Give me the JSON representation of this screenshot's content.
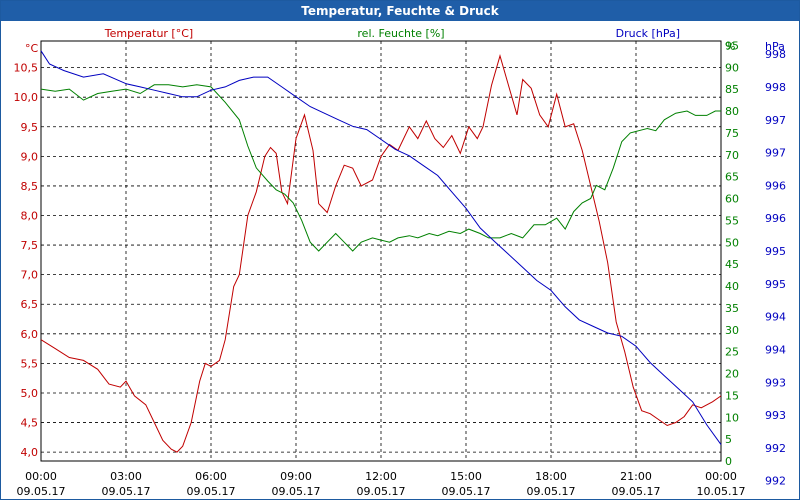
{
  "window": {
    "title": "Temperatur, Feuchte & Druck"
  },
  "chart_data": {
    "type": "line",
    "title": "Temperatur, Feuchte & Druck",
    "x_ticks": [
      {
        "time": "00:00",
        "date": "09.05.17"
      },
      {
        "time": "03:00",
        "date": "09.05.17"
      },
      {
        "time": "06:00",
        "date": "09.05.17"
      },
      {
        "time": "09:00",
        "date": "09.05.17"
      },
      {
        "time": "12:00",
        "date": "09.05.17"
      },
      {
        "time": "15:00",
        "date": "09.05.17"
      },
      {
        "time": "18:00",
        "date": "09.05.17"
      },
      {
        "time": "21:00",
        "date": "09.05.17"
      },
      {
        "time": "00:00",
        "date": "10.05.17"
      }
    ],
    "xlim_hours": [
      0,
      24
    ],
    "grid": true,
    "axes": {
      "temperature": {
        "unit": "°C",
        "legend": "Temperatur [°C]",
        "color": "#c00000",
        "ylim": [
          3.85,
          10.95
        ],
        "ticks": [
          "4,0",
          "4,5",
          "5,0",
          "5,5",
          "6,0",
          "6,5",
          "7,0",
          "7,5",
          "8,0",
          "8,5",
          "9,0",
          "9,5",
          "10,0",
          "10,5"
        ],
        "tick_values": [
          4.0,
          4.5,
          5.0,
          5.5,
          6.0,
          6.5,
          7.0,
          7.5,
          8.0,
          8.5,
          9.0,
          9.5,
          10.0,
          10.5
        ]
      },
      "humidity": {
        "unit": "%",
        "legend": "rel. Feuchte [%]",
        "color": "#008000",
        "ylim": [
          0,
          96
        ],
        "ticks": [
          "0",
          "5",
          "10",
          "15",
          "20",
          "25",
          "30",
          "35",
          "40",
          "45",
          "50",
          "55",
          "60",
          "65",
          "70",
          "75",
          "80",
          "85",
          "90",
          "95"
        ],
        "tick_values": [
          0,
          5,
          10,
          15,
          20,
          25,
          30,
          35,
          40,
          45,
          50,
          55,
          60,
          65,
          70,
          75,
          80,
          85,
          90,
          95
        ]
      },
      "pressure": {
        "unit": "hPa",
        "legend": "Druck [hPa]",
        "color": "#0000c0",
        "ylim": [
          991.8,
          998.2
        ],
        "ticks": [
          "998",
          "998",
          "997",
          "997",
          "996",
          "996",
          "995",
          "995",
          "994",
          "994",
          "993",
          "993",
          "992",
          "992"
        ],
        "tick_values": [
          998.0,
          997.5,
          997.0,
          996.5,
          996.0,
          995.5,
          995.0,
          994.5,
          994.0,
          993.5,
          993.0,
          992.5,
          992.0,
          991.5
        ]
      }
    },
    "series": [
      {
        "name": "Temperatur [°C]",
        "axis": "temperature",
        "points": [
          [
            0,
            5.9
          ],
          [
            0.5,
            5.75
          ],
          [
            1.0,
            5.6
          ],
          [
            1.5,
            5.55
          ],
          [
            2.0,
            5.4
          ],
          [
            2.4,
            5.15
          ],
          [
            2.8,
            5.1
          ],
          [
            3.0,
            5.2
          ],
          [
            3.3,
            4.95
          ],
          [
            3.7,
            4.8
          ],
          [
            4.0,
            4.5
          ],
          [
            4.3,
            4.2
          ],
          [
            4.6,
            4.05
          ],
          [
            4.8,
            4.0
          ],
          [
            5.0,
            4.1
          ],
          [
            5.3,
            4.5
          ],
          [
            5.6,
            5.2
          ],
          [
            5.8,
            5.5
          ],
          [
            6.0,
            5.45
          ],
          [
            6.3,
            5.55
          ],
          [
            6.5,
            5.9
          ],
          [
            6.8,
            6.8
          ],
          [
            7.0,
            7.0
          ],
          [
            7.3,
            8.0
          ],
          [
            7.6,
            8.4
          ],
          [
            7.9,
            9.0
          ],
          [
            8.1,
            9.15
          ],
          [
            8.3,
            9.05
          ],
          [
            8.5,
            8.4
          ],
          [
            8.7,
            8.2
          ],
          [
            9.0,
            9.3
          ],
          [
            9.3,
            9.7
          ],
          [
            9.6,
            9.1
          ],
          [
            9.8,
            8.2
          ],
          [
            10.1,
            8.05
          ],
          [
            10.4,
            8.5
          ],
          [
            10.7,
            8.85
          ],
          [
            11.0,
            8.8
          ],
          [
            11.3,
            8.5
          ],
          [
            11.7,
            8.6
          ],
          [
            12.0,
            9.0
          ],
          [
            12.3,
            9.2
          ],
          [
            12.6,
            9.1
          ],
          [
            13.0,
            9.5
          ],
          [
            13.3,
            9.3
          ],
          [
            13.6,
            9.6
          ],
          [
            13.9,
            9.3
          ],
          [
            14.2,
            9.15
          ],
          [
            14.5,
            9.35
          ],
          [
            14.8,
            9.05
          ],
          [
            15.1,
            9.5
          ],
          [
            15.4,
            9.3
          ],
          [
            15.6,
            9.5
          ],
          [
            15.9,
            10.2
          ],
          [
            16.2,
            10.7
          ],
          [
            16.5,
            10.2
          ],
          [
            16.8,
            9.7
          ],
          [
            17.0,
            10.3
          ],
          [
            17.3,
            10.15
          ],
          [
            17.6,
            9.7
          ],
          [
            17.9,
            9.5
          ],
          [
            18.2,
            10.05
          ],
          [
            18.5,
            9.5
          ],
          [
            18.8,
            9.55
          ],
          [
            19.1,
            9.1
          ],
          [
            19.4,
            8.5
          ],
          [
            19.7,
            7.9
          ],
          [
            20.0,
            7.2
          ],
          [
            20.3,
            6.2
          ],
          [
            20.6,
            5.7
          ],
          [
            20.9,
            5.1
          ],
          [
            21.2,
            4.7
          ],
          [
            21.5,
            4.65
          ],
          [
            21.8,
            4.55
          ],
          [
            22.1,
            4.45
          ],
          [
            22.4,
            4.5
          ],
          [
            22.7,
            4.6
          ],
          [
            23.0,
            4.8
          ],
          [
            23.3,
            4.75
          ],
          [
            23.7,
            4.85
          ],
          [
            24.0,
            4.95
          ]
        ]
      },
      {
        "name": "rel. Feuchte [%]",
        "axis": "humidity",
        "points": [
          [
            0,
            85
          ],
          [
            0.5,
            84.5
          ],
          [
            1.0,
            85
          ],
          [
            1.5,
            82.5
          ],
          [
            2.0,
            84
          ],
          [
            2.5,
            84.5
          ],
          [
            3.0,
            85
          ],
          [
            3.5,
            84
          ],
          [
            4.0,
            86
          ],
          [
            4.5,
            86
          ],
          [
            5.0,
            85.5
          ],
          [
            5.5,
            86
          ],
          [
            6.0,
            85.5
          ],
          [
            6.5,
            82
          ],
          [
            7.0,
            78
          ],
          [
            7.3,
            72
          ],
          [
            7.6,
            67
          ],
          [
            8.0,
            64
          ],
          [
            8.3,
            62
          ],
          [
            8.6,
            61
          ],
          [
            8.9,
            59
          ],
          [
            9.2,
            55
          ],
          [
            9.5,
            50
          ],
          [
            9.8,
            48
          ],
          [
            10.1,
            50
          ],
          [
            10.4,
            52
          ],
          [
            10.7,
            50
          ],
          [
            11.0,
            48
          ],
          [
            11.3,
            50
          ],
          [
            11.7,
            51
          ],
          [
            12.0,
            50.5
          ],
          [
            12.3,
            50
          ],
          [
            12.6,
            51
          ],
          [
            13.0,
            51.5
          ],
          [
            13.3,
            51
          ],
          [
            13.7,
            52
          ],
          [
            14.0,
            51.5
          ],
          [
            14.4,
            52.5
          ],
          [
            14.8,
            52
          ],
          [
            15.1,
            53
          ],
          [
            15.5,
            52
          ],
          [
            15.8,
            51
          ],
          [
            16.2,
            51
          ],
          [
            16.6,
            52
          ],
          [
            17.0,
            51
          ],
          [
            17.4,
            54
          ],
          [
            17.8,
            54
          ],
          [
            18.2,
            55.5
          ],
          [
            18.5,
            53
          ],
          [
            18.8,
            57
          ],
          [
            19.1,
            59
          ],
          [
            19.4,
            60
          ],
          [
            19.6,
            63
          ],
          [
            19.9,
            62
          ],
          [
            20.2,
            67
          ],
          [
            20.5,
            73
          ],
          [
            20.8,
            75
          ],
          [
            21.1,
            75.5
          ],
          [
            21.4,
            76
          ],
          [
            21.7,
            75.5
          ],
          [
            22.0,
            78
          ],
          [
            22.4,
            79.5
          ],
          [
            22.8,
            80
          ],
          [
            23.1,
            79
          ],
          [
            23.5,
            79
          ],
          [
            23.8,
            80
          ],
          [
            24.0,
            80
          ]
        ]
      },
      {
        "name": "Druck [hPa]",
        "axis": "pressure",
        "points": [
          [
            0,
            998.05
          ],
          [
            0.3,
            997.85
          ],
          [
            0.8,
            997.75
          ],
          [
            1.5,
            997.65
          ],
          [
            2.2,
            997.7
          ],
          [
            3.0,
            997.55
          ],
          [
            3.5,
            997.5
          ],
          [
            4.0,
            997.45
          ],
          [
            4.5,
            997.4
          ],
          [
            5.0,
            997.35
          ],
          [
            5.5,
            997.35
          ],
          [
            6.0,
            997.45
          ],
          [
            6.5,
            997.5
          ],
          [
            7.0,
            997.6
          ],
          [
            7.5,
            997.65
          ],
          [
            8.0,
            997.65
          ],
          [
            8.5,
            997.5
          ],
          [
            9.0,
            997.35
          ],
          [
            9.5,
            997.2
          ],
          [
            10.0,
            997.1
          ],
          [
            10.5,
            997.0
          ],
          [
            11.0,
            996.9
          ],
          [
            11.5,
            996.85
          ],
          [
            12.0,
            996.7
          ],
          [
            12.5,
            996.55
          ],
          [
            13.0,
            996.45
          ],
          [
            13.5,
            996.3
          ],
          [
            14.0,
            996.15
          ],
          [
            14.5,
            995.9
          ],
          [
            15.0,
            995.65
          ],
          [
            15.5,
            995.35
          ],
          [
            16.0,
            995.15
          ],
          [
            16.5,
            994.95
          ],
          [
            17.0,
            994.75
          ],
          [
            17.5,
            994.55
          ],
          [
            18.0,
            994.4
          ],
          [
            18.5,
            994.15
          ],
          [
            19.0,
            993.95
          ],
          [
            19.5,
            993.85
          ],
          [
            20.0,
            993.75
          ],
          [
            20.5,
            993.7
          ],
          [
            21.0,
            993.55
          ],
          [
            21.5,
            993.3
          ],
          [
            22.0,
            993.1
          ],
          [
            22.5,
            992.9
          ],
          [
            23.0,
            992.7
          ],
          [
            23.5,
            992.35
          ],
          [
            24.0,
            992.05
          ]
        ]
      }
    ]
  }
}
